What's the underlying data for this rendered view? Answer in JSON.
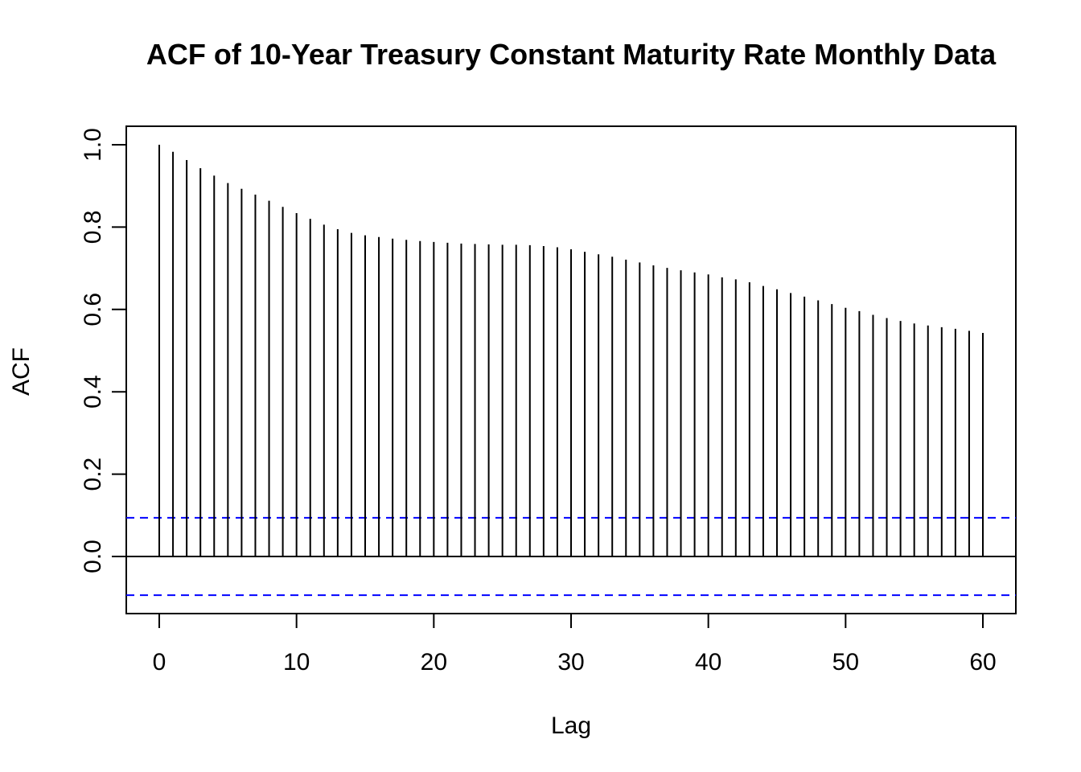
{
  "chart_data": {
    "type": "bar",
    "title": "ACF of 10-Year Treasury Constant Maturity Rate Monthly Data",
    "xlabel": "Lag",
    "ylabel": "ACF",
    "xlim": [
      0,
      60
    ],
    "ylim": [
      -0.14,
      1.0
    ],
    "x_ticks": [
      0,
      10,
      20,
      30,
      40,
      50,
      60
    ],
    "x_tick_labels": [
      "0",
      "10",
      "20",
      "30",
      "40",
      "50",
      "60"
    ],
    "y_ticks": [
      0.0,
      0.2,
      0.4,
      0.6,
      0.8,
      1.0
    ],
    "y_tick_labels": [
      "0.0",
      "0.2",
      "0.4",
      "0.6",
      "0.8",
      "1.0"
    ],
    "grid": false,
    "series": [
      {
        "x": [
          0,
          1,
          2,
          3,
          4,
          5,
          6,
          7,
          8,
          9,
          10,
          11,
          12,
          13,
          14,
          15,
          16,
          17,
          18,
          19,
          20,
          21,
          22,
          23,
          24,
          25,
          26,
          27,
          28,
          29,
          30,
          31,
          32,
          33,
          34,
          35,
          36,
          37,
          38,
          39,
          40,
          41,
          42,
          43,
          44,
          45,
          46,
          47,
          48,
          49,
          50,
          51,
          52,
          53,
          54,
          55,
          56,
          57,
          58,
          59,
          60
        ],
        "values": [
          1.0,
          0.983,
          0.963,
          0.943,
          0.925,
          0.907,
          0.893,
          0.879,
          0.864,
          0.849,
          0.834,
          0.82,
          0.806,
          0.795,
          0.786,
          0.78,
          0.776,
          0.772,
          0.769,
          0.766,
          0.764,
          0.762,
          0.76,
          0.759,
          0.758,
          0.757,
          0.757,
          0.756,
          0.754,
          0.751,
          0.746,
          0.74,
          0.734,
          0.728,
          0.721,
          0.714,
          0.707,
          0.701,
          0.695,
          0.69,
          0.685,
          0.678,
          0.673,
          0.666,
          0.657,
          0.649,
          0.64,
          0.631,
          0.622,
          0.613,
          0.604,
          0.596,
          0.587,
          0.579,
          0.572,
          0.566,
          0.561,
          0.557,
          0.553,
          0.548,
          0.543
        ],
        "color": "#000000"
      }
    ],
    "confidence_bounds": [
      0.094,
      -0.094
    ],
    "confidence_color": "#0000ff",
    "zero_line": 0.0
  }
}
